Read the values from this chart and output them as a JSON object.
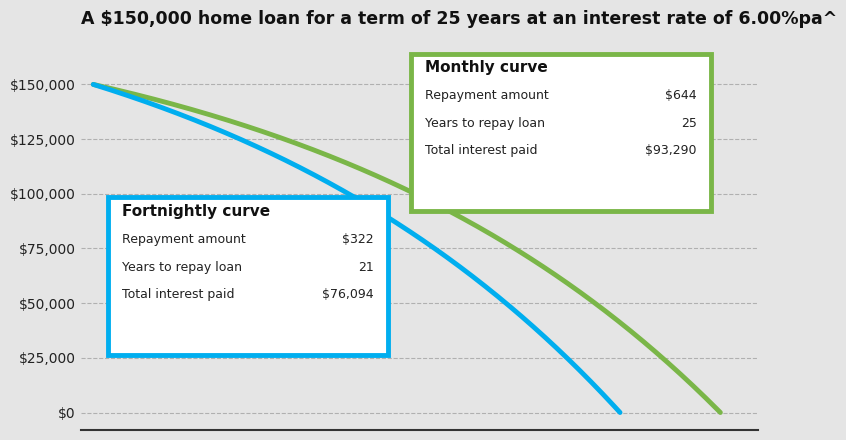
{
  "title": "A $150,000 home loan for a term of 25 years at an interest rate of 6.00%pa^",
  "principal": 150000,
  "annual_rate": 0.06,
  "monthly_term_years": 25,
  "fortnightly_term_years": 21,
  "monthly_color": "#7ab648",
  "fortnightly_color": "#00aeef",
  "bg_color": "#e5e5e5",
  "plot_bg_color": "#e5e5e5",
  "yticks": [
    0,
    25000,
    50000,
    75000,
    100000,
    125000,
    150000
  ],
  "ytick_labels": [
    "$0",
    "$25,000",
    "$50,000",
    "$75,000",
    "$100,000",
    "$125,000",
    "$150,000"
  ],
  "ylim": [
    -8000,
    170000
  ],
  "title_fontsize": 12.5,
  "tick_fontsize": 10,
  "monthly_label_title": "Monthly curve",
  "monthly_row1_key": "Repayment amount",
  "monthly_row1_val": "$644",
  "monthly_row2_key": "Years to repay loan",
  "monthly_row2_val": "25",
  "monthly_row3_key": "Total interest paid",
  "monthly_row3_val": "$93,290",
  "fort_label_title": "Fortnightly curve",
  "fort_row1_key": "Repayment amount",
  "fort_row1_val": "$322",
  "fort_row2_key": "Years to repay loan",
  "fort_row2_val": "21",
  "fort_row3_key": "Total interest paid",
  "fort_row3_val": "$76,094"
}
